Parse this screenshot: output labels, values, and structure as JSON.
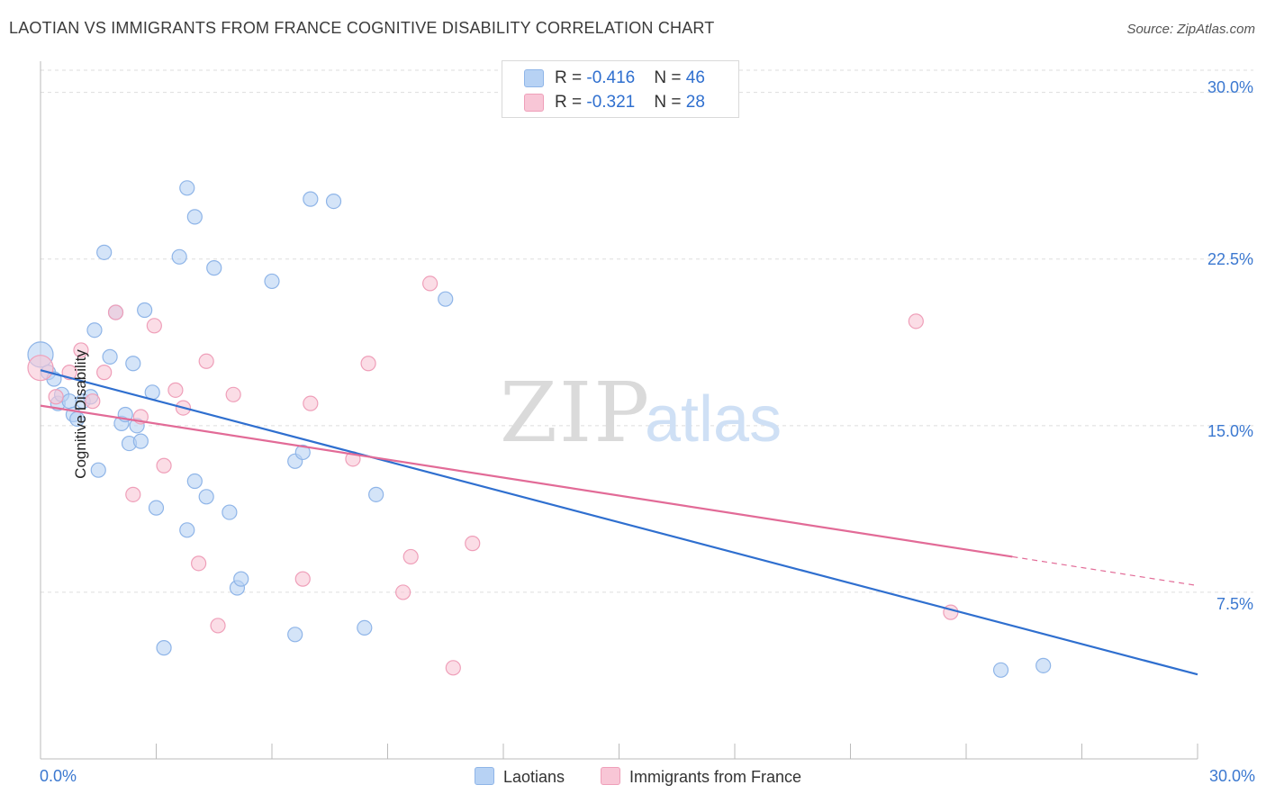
{
  "title": "LAOTIAN VS IMMIGRANTS FROM FRANCE COGNITIVE DISABILITY CORRELATION CHART",
  "source": "Source: ZipAtlas.com",
  "colors": {
    "laotians_fill": "#b7d2f4",
    "laotians_stroke": "#8fb5e8",
    "laotians_line": "#2f6fcf",
    "france_fill": "#f8c6d6",
    "france_stroke": "#ef9fb9",
    "france_line": "#e26b97",
    "tick_label": "#3b78d0",
    "grid": "#dddddd"
  },
  "legend_top": {
    "laotians": {
      "r_label": "R = ",
      "r_value": "-0.416",
      "n_label": "N = ",
      "n_value": "46"
    },
    "france": {
      "r_label": "R = ",
      "r_value": "-0.321",
      "n_label": "N = ",
      "n_value": "28"
    }
  },
  "legend_bottom": {
    "laotians": "Laotians",
    "france": "Immigrants from France"
  },
  "chart_data": {
    "type": "scatter",
    "title": "LAOTIAN VS IMMIGRANTS FROM FRANCE COGNITIVE DISABILITY CORRELATION CHART",
    "xlabel": "",
    "ylabel": "Cognitive Disability",
    "xlim": [
      0,
      30
    ],
    "ylim": [
      0,
      31
    ],
    "x_tick_labels": [
      {
        "value": 0,
        "label": "0.0%"
      },
      {
        "value": 30,
        "label": "30.0%"
      }
    ],
    "y_tick_labels": [
      {
        "value": 7.5,
        "label": "7.5%"
      },
      {
        "value": 15,
        "label": "15.0%"
      },
      {
        "value": 22.5,
        "label": "22.5%"
      },
      {
        "value": 30,
        "label": "30.0%"
      }
    ],
    "watermark": {
      "zip": "ZIP",
      "atlas": "atlas"
    },
    "series": [
      {
        "name": "Laotians",
        "points": [
          [
            0.0,
            18.2
          ],
          [
            0.2,
            17.4
          ],
          [
            0.35,
            17.1
          ],
          [
            0.45,
            16.0
          ],
          [
            0.55,
            16.4
          ],
          [
            0.75,
            16.1
          ],
          [
            0.85,
            15.5
          ],
          [
            0.95,
            15.3
          ],
          [
            1.1,
            16.1
          ],
          [
            1.3,
            16.3
          ],
          [
            1.4,
            19.3
          ],
          [
            1.5,
            13.0
          ],
          [
            1.65,
            22.8
          ],
          [
            1.8,
            18.1
          ],
          [
            1.95,
            20.1
          ],
          [
            2.1,
            15.1
          ],
          [
            2.2,
            15.5
          ],
          [
            2.3,
            14.2
          ],
          [
            2.4,
            17.8
          ],
          [
            2.5,
            15.0
          ],
          [
            2.6,
            14.3
          ],
          [
            2.7,
            20.2
          ],
          [
            2.9,
            16.5
          ],
          [
            3.0,
            11.3
          ],
          [
            3.2,
            5.0
          ],
          [
            3.6,
            22.6
          ],
          [
            3.8,
            25.7
          ],
          [
            3.8,
            10.3
          ],
          [
            4.0,
            24.4
          ],
          [
            4.0,
            12.5
          ],
          [
            4.3,
            11.8
          ],
          [
            4.5,
            22.1
          ],
          [
            4.9,
            11.1
          ],
          [
            5.1,
            7.7
          ],
          [
            5.2,
            8.1
          ],
          [
            6.0,
            21.5
          ],
          [
            6.6,
            5.6
          ],
          [
            6.6,
            13.4
          ],
          [
            6.8,
            13.8
          ],
          [
            7.0,
            25.2
          ],
          [
            7.6,
            25.1
          ],
          [
            8.4,
            5.9
          ],
          [
            8.7,
            11.9
          ],
          [
            10.5,
            20.7
          ],
          [
            24.9,
            4.0
          ],
          [
            26.0,
            4.2
          ]
        ]
      },
      {
        "name": "Immigrants from France",
        "points": [
          [
            0.0,
            17.6
          ],
          [
            0.4,
            16.3
          ],
          [
            0.75,
            17.4
          ],
          [
            1.05,
            18.4
          ],
          [
            1.35,
            16.1
          ],
          [
            1.65,
            17.4
          ],
          [
            1.95,
            20.1
          ],
          [
            2.4,
            11.9
          ],
          [
            2.6,
            15.4
          ],
          [
            2.95,
            19.5
          ],
          [
            3.2,
            13.2
          ],
          [
            3.5,
            16.6
          ],
          [
            3.7,
            15.8
          ],
          [
            4.1,
            8.8
          ],
          [
            4.3,
            17.9
          ],
          [
            4.6,
            6.0
          ],
          [
            5.0,
            16.4
          ],
          [
            6.8,
            8.1
          ],
          [
            7.0,
            16.0
          ],
          [
            8.1,
            13.5
          ],
          [
            8.5,
            17.8
          ],
          [
            9.4,
            7.5
          ],
          [
            9.6,
            9.1
          ],
          [
            10.1,
            21.4
          ],
          [
            10.7,
            4.1
          ],
          [
            11.2,
            9.7
          ],
          [
            22.7,
            19.7
          ],
          [
            23.6,
            6.6
          ]
        ]
      }
    ],
    "trend_lines": [
      {
        "name": "Laotians",
        "x": [
          0,
          30
        ],
        "y": [
          17.5,
          3.8
        ]
      },
      {
        "name": "Immigrants from France",
        "x": [
          0,
          25.2
        ],
        "y": [
          15.9,
          9.1
        ],
        "dashed_to_x": 30,
        "dashed_to_y": 7.8
      }
    ]
  }
}
